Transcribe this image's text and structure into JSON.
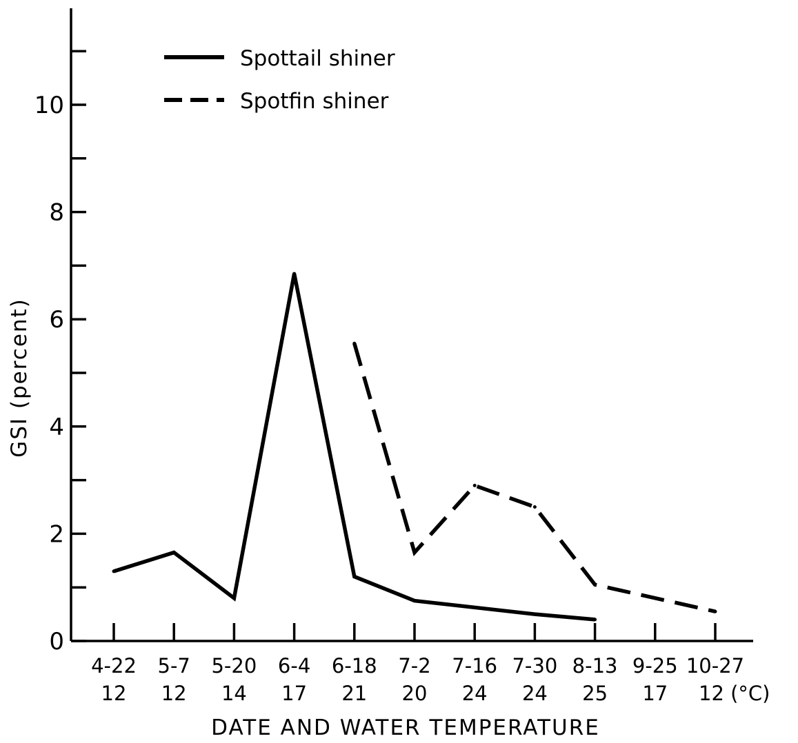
{
  "chart_data": {
    "type": "line",
    "xlabel": "DATE AND WATER TEMPERATURE",
    "ylabel": "GSI (percent)",
    "ylim": [
      0,
      11.5
    ],
    "yticks": [
      0,
      2,
      4,
      6,
      8,
      10
    ],
    "categories": [
      {
        "date": "4-22",
        "temp": "12"
      },
      {
        "date": "5-7",
        "temp": "12"
      },
      {
        "date": "5-20",
        "temp": "14"
      },
      {
        "date": "6-4",
        "temp": "17"
      },
      {
        "date": "6-18",
        "temp": "21"
      },
      {
        "date": "7-2",
        "temp": "20"
      },
      {
        "date": "7-16",
        "temp": "24"
      },
      {
        "date": "7-30",
        "temp": "24"
      },
      {
        "date": "8-13",
        "temp": "25"
      },
      {
        "date": "9-25",
        "temp": "17"
      },
      {
        "date": "10-27",
        "temp": "12 (°C)"
      }
    ],
    "series": [
      {
        "name": "Spottail shiner",
        "style": "solid",
        "values": [
          1.3,
          1.65,
          0.8,
          6.85,
          1.2,
          0.75,
          null,
          0.5,
          0.4,
          null,
          null
        ],
        "note_points": []
      },
      {
        "name": "Spotfin shiner",
        "style": "dashed",
        "values": [
          null,
          null,
          null,
          null,
          5.55,
          1.65,
          2.9,
          2.5,
          1.05,
          null,
          0.55
        ]
      }
    ],
    "legend_position": "top-left",
    "grid": false
  }
}
